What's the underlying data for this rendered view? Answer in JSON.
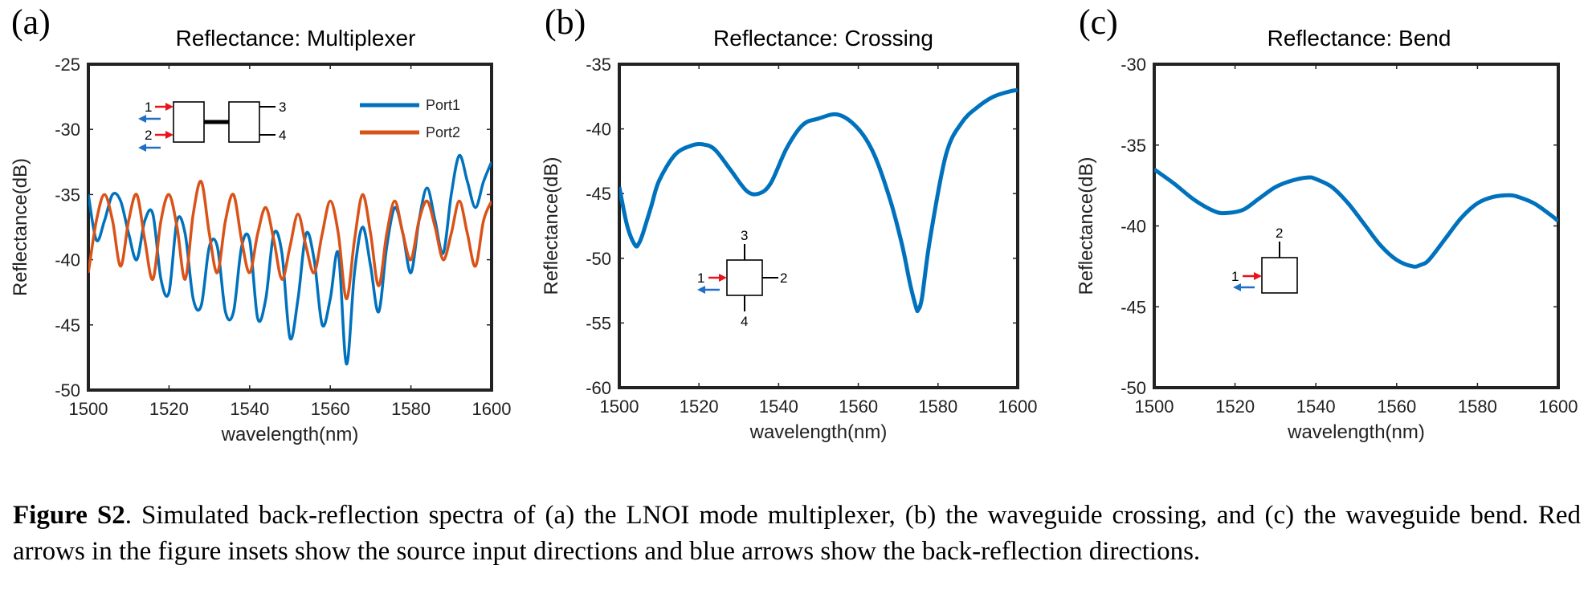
{
  "figure": {
    "panels": [
      {
        "letter": "(a)",
        "title": "Reflectance: Multiplexer"
      },
      {
        "letter": "(b)",
        "title": "Reflectance: Crossing"
      },
      {
        "letter": "(c)",
        "title": "Reflectance: Bend"
      }
    ],
    "caption": {
      "label": "Figure S2",
      "text": ". Simulated back-reflection spectra of (a) the LNOI mode multiplexer, (b) the waveguide crossing, and (c) the waveguide bend. Red arrows in the figure insets show the source input directions and blue arrows show the back-reflection directions."
    },
    "insets": {
      "multiplexer_ports": [
        "1",
        "2",
        "3",
        "4"
      ],
      "crossing_ports": [
        "1",
        "2",
        "3",
        "4"
      ],
      "bend_ports": [
        "1",
        "2"
      ]
    }
  },
  "colors": {
    "port1": "#0072bd",
    "port2": "#d95319",
    "source_arrow": "#e8141b",
    "reflection_arrow": "#1f6fc6"
  },
  "chart_data": [
    {
      "type": "line",
      "title": "Reflectance: Multiplexer",
      "xlabel": "wavelength(nm)",
      "ylabel": "Reflectance(dB)",
      "xlim": [
        1500,
        1600
      ],
      "ylim": [
        -50,
        -25
      ],
      "xticks": [
        1500,
        1520,
        1540,
        1560,
        1580,
        1600
      ],
      "yticks": [
        -25,
        -30,
        -35,
        -40,
        -45,
        -50
      ],
      "legend": "top-right",
      "series": [
        {
          "name": "Port1",
          "color": "#0072bd",
          "x": [
            1500,
            1502,
            1504,
            1506,
            1508,
            1510,
            1512,
            1514,
            1516,
            1518,
            1520,
            1522,
            1524,
            1526,
            1528,
            1530,
            1532,
            1534,
            1536,
            1538,
            1540,
            1542,
            1544,
            1546,
            1548,
            1550,
            1552,
            1554,
            1556,
            1558,
            1560,
            1562,
            1564,
            1566,
            1568,
            1570,
            1572,
            1574,
            1576,
            1578,
            1580,
            1582,
            1584,
            1586,
            1588,
            1590,
            1592,
            1594,
            1596,
            1598,
            1600
          ],
          "y": [
            -35,
            -38.5,
            -37,
            -35,
            -35.5,
            -38,
            -40,
            -37,
            -36.5,
            -41.5,
            -42.5,
            -37,
            -38,
            -43,
            -43.5,
            -39,
            -39,
            -44,
            -44,
            -39,
            -38.5,
            -44.5,
            -43,
            -38,
            -39.5,
            -46,
            -43,
            -38,
            -40,
            -45,
            -43,
            -39.5,
            -48,
            -41,
            -37.5,
            -40.5,
            -44,
            -39,
            -36,
            -38,
            -41,
            -37,
            -34.5,
            -37,
            -39.5,
            -35,
            -32,
            -34,
            -36,
            -34,
            -32.5
          ]
        },
        {
          "name": "Port2",
          "color": "#d95319",
          "x": [
            1500,
            1502,
            1504,
            1506,
            1508,
            1510,
            1512,
            1514,
            1516,
            1518,
            1520,
            1522,
            1524,
            1526,
            1528,
            1530,
            1532,
            1534,
            1536,
            1538,
            1540,
            1542,
            1544,
            1546,
            1548,
            1550,
            1552,
            1554,
            1556,
            1558,
            1560,
            1562,
            1564,
            1566,
            1568,
            1570,
            1572,
            1574,
            1576,
            1578,
            1580,
            1582,
            1584,
            1586,
            1588,
            1590,
            1592,
            1594,
            1596,
            1598,
            1600
          ],
          "y": [
            -41,
            -37,
            -35,
            -37,
            -40.5,
            -37,
            -35,
            -38.5,
            -41.5,
            -37,
            -35,
            -37.5,
            -41.5,
            -36.5,
            -34,
            -38,
            -41,
            -37,
            -35,
            -38.5,
            -41,
            -38,
            -36,
            -38.5,
            -41.5,
            -39,
            -36.5,
            -39,
            -41,
            -38,
            -35.5,
            -38,
            -43,
            -38.5,
            -35,
            -38,
            -42,
            -38,
            -35.5,
            -38,
            -40,
            -37,
            -35.5,
            -37.5,
            -40,
            -38,
            -35.5,
            -38,
            -40.5,
            -37,
            -35.5
          ]
        }
      ]
    },
    {
      "type": "line",
      "title": "Reflectance: Crossing",
      "xlabel": "wavelength(nm)",
      "ylabel": "Reflectance(dB)",
      "xlim": [
        1500,
        1600
      ],
      "ylim": [
        -60,
        -35
      ],
      "xticks": [
        1500,
        1520,
        1540,
        1560,
        1580,
        1600
      ],
      "yticks": [
        -35,
        -40,
        -45,
        -50,
        -55,
        -60
      ],
      "series": [
        {
          "color": "#0072bd",
          "x": [
            1500,
            1502,
            1504,
            1505,
            1506,
            1508,
            1510,
            1514,
            1518,
            1521,
            1524,
            1528,
            1532,
            1535,
            1538,
            1542,
            1546,
            1550,
            1555,
            1560,
            1564,
            1568,
            1571,
            1573,
            1574.5,
            1575,
            1576,
            1578,
            1582,
            1586,
            1590,
            1594,
            1598,
            1600
          ],
          "y": [
            -44.5,
            -47.5,
            -49,
            -48.8,
            -48,
            -46,
            -44,
            -42,
            -41.3,
            -41.2,
            -41.6,
            -43.2,
            -44.8,
            -45,
            -44.2,
            -41.5,
            -39.7,
            -39.2,
            -38.9,
            -40,
            -42,
            -45.5,
            -49,
            -52,
            -53.8,
            -54,
            -53,
            -48.5,
            -42,
            -39.5,
            -38.3,
            -37.5,
            -37.1,
            -37
          ]
        }
      ]
    },
    {
      "type": "line",
      "title": "Reflectance: Bend",
      "xlabel": "wavelength(nm)",
      "ylabel": "Reflectance(dB)",
      "xlim": [
        1500,
        1600
      ],
      "ylim": [
        -50,
        -30
      ],
      "xticks": [
        1500,
        1520,
        1540,
        1560,
        1580,
        1600
      ],
      "yticks": [
        -30,
        -35,
        -40,
        -45,
        -50
      ],
      "series": [
        {
          "color": "#0072bd",
          "x": [
            1500,
            1505,
            1510,
            1515,
            1518,
            1522,
            1526,
            1530,
            1534,
            1538,
            1540,
            1544,
            1548,
            1552,
            1556,
            1560,
            1564,
            1566,
            1568,
            1572,
            1576,
            1580,
            1584,
            1588,
            1590,
            1594,
            1598,
            1600
          ],
          "y": [
            -36.5,
            -37.4,
            -38.4,
            -39.1,
            -39.2,
            -39,
            -38.3,
            -37.6,
            -37.2,
            -37,
            -37.1,
            -37.6,
            -38.6,
            -39.9,
            -41.2,
            -42.1,
            -42.5,
            -42.4,
            -42.1,
            -40.8,
            -39.5,
            -38.6,
            -38.2,
            -38.1,
            -38.2,
            -38.6,
            -39.3,
            -39.7
          ]
        }
      ]
    }
  ]
}
